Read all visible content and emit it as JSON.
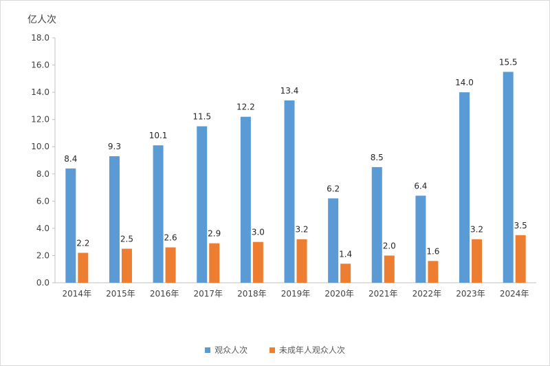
{
  "chart_data": {
    "type": "bar",
    "unit_label": "亿人次",
    "categories": [
      "2014年",
      "2015年",
      "2016年",
      "2017年",
      "2018年",
      "2019年",
      "2020年",
      "2021年",
      "2022年",
      "2023年",
      "2024年"
    ],
    "series": [
      {
        "name": "观众人次",
        "color": "#5b9bd5",
        "values": [
          8.4,
          9.3,
          10.1,
          11.5,
          12.2,
          13.4,
          6.2,
          8.5,
          6.4,
          14.0,
          15.5
        ]
      },
      {
        "name": "未成年人观众人次",
        "color": "#ed7d31",
        "values": [
          2.2,
          2.5,
          2.6,
          2.9,
          3.0,
          3.2,
          1.4,
          2.0,
          1.6,
          3.2,
          3.5
        ]
      }
    ],
    "ylim": [
      0,
      18
    ],
    "yticks": [
      0,
      2,
      4,
      6,
      8,
      10,
      12,
      14,
      16,
      18
    ],
    "tick_decimals": 1,
    "label_decimals": 1,
    "grid": false,
    "legend_position": "bottom"
  }
}
